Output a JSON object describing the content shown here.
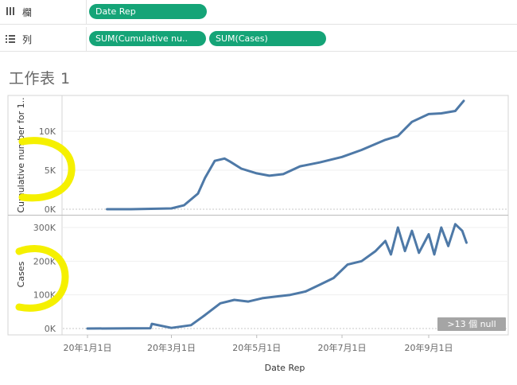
{
  "shelves": {
    "columns": {
      "label": "欄",
      "icon": "columns-icon",
      "pills": [
        "Date Rep"
      ]
    },
    "rows": {
      "label": "列",
      "icon": "rows-icon",
      "pills": [
        "SUM(Cumulative nu..",
        "SUM(Cases)"
      ]
    }
  },
  "sheet_title": "工作表 1",
  "null_badge": ">13 個 null",
  "colors": {
    "pill": "#15a477",
    "line": "#4e79a7",
    "highlight": "#f5f000"
  },
  "chart_data": [
    {
      "type": "line",
      "ylabel": "Cumulative number for 1..",
      "yticks": [
        "0K",
        "5K",
        "10K"
      ],
      "ylim": [
        0,
        14000
      ],
      "x": [
        "2020-01-15",
        "2020-02-01",
        "2020-03-01",
        "2020-03-10",
        "2020-03-20",
        "2020-03-25",
        "2020-04-01",
        "2020-04-08",
        "2020-04-12",
        "2020-04-20",
        "2020-05-01",
        "2020-05-10",
        "2020-05-20",
        "2020-06-01",
        "2020-06-15",
        "2020-07-01",
        "2020-07-15",
        "2020-08-01",
        "2020-08-10",
        "2020-08-20",
        "2020-09-01",
        "2020-09-10",
        "2020-09-20",
        "2020-09-26"
      ],
      "values": [
        0,
        0,
        100,
        500,
        2000,
        4000,
        6200,
        6500,
        6100,
        5200,
        4600,
        4300,
        4500,
        5500,
        6000,
        6700,
        7600,
        8900,
        9400,
        11200,
        12200,
        12300,
        12600,
        13900
      ]
    },
    {
      "type": "line",
      "ylabel": "Cases",
      "yticks": [
        "0K",
        "100K",
        "200K",
        "300K"
      ],
      "ylim": [
        -5000,
        320000
      ],
      "x": [
        "2020-01-01",
        "2020-02-01",
        "2020-02-15",
        "2020-02-16",
        "2020-03-01",
        "2020-03-15",
        "2020-03-25",
        "2020-04-05",
        "2020-04-15",
        "2020-04-25",
        "2020-05-05",
        "2020-05-15",
        "2020-05-25",
        "2020-06-05",
        "2020-06-15",
        "2020-06-25",
        "2020-07-05",
        "2020-07-15",
        "2020-07-25",
        "2020-08-01",
        "2020-08-05",
        "2020-08-10",
        "2020-08-15",
        "2020-08-20",
        "2020-08-25",
        "2020-09-01",
        "2020-09-05",
        "2020-09-10",
        "2020-09-15",
        "2020-09-20",
        "2020-09-25",
        "2020-09-28"
      ],
      "values": [
        0,
        500,
        1000,
        14000,
        2000,
        10000,
        40000,
        75000,
        85000,
        80000,
        90000,
        95000,
        100000,
        110000,
        130000,
        150000,
        190000,
        200000,
        230000,
        260000,
        220000,
        300000,
        230000,
        290000,
        225000,
        280000,
        220000,
        300000,
        245000,
        310000,
        290000,
        255000
      ]
    }
  ],
  "x_axis": {
    "label": "Date Rep",
    "ticks": [
      {
        "date": "2020-01-01",
        "label": "20年1月1日"
      },
      {
        "date": "2020-03-01",
        "label": "20年3月1日"
      },
      {
        "date": "2020-05-01",
        "label": "20年5月1日"
      },
      {
        "date": "2020-07-01",
        "label": "20年7月1日"
      },
      {
        "date": "2020-09-01",
        "label": "20年9月1日"
      }
    ]
  }
}
